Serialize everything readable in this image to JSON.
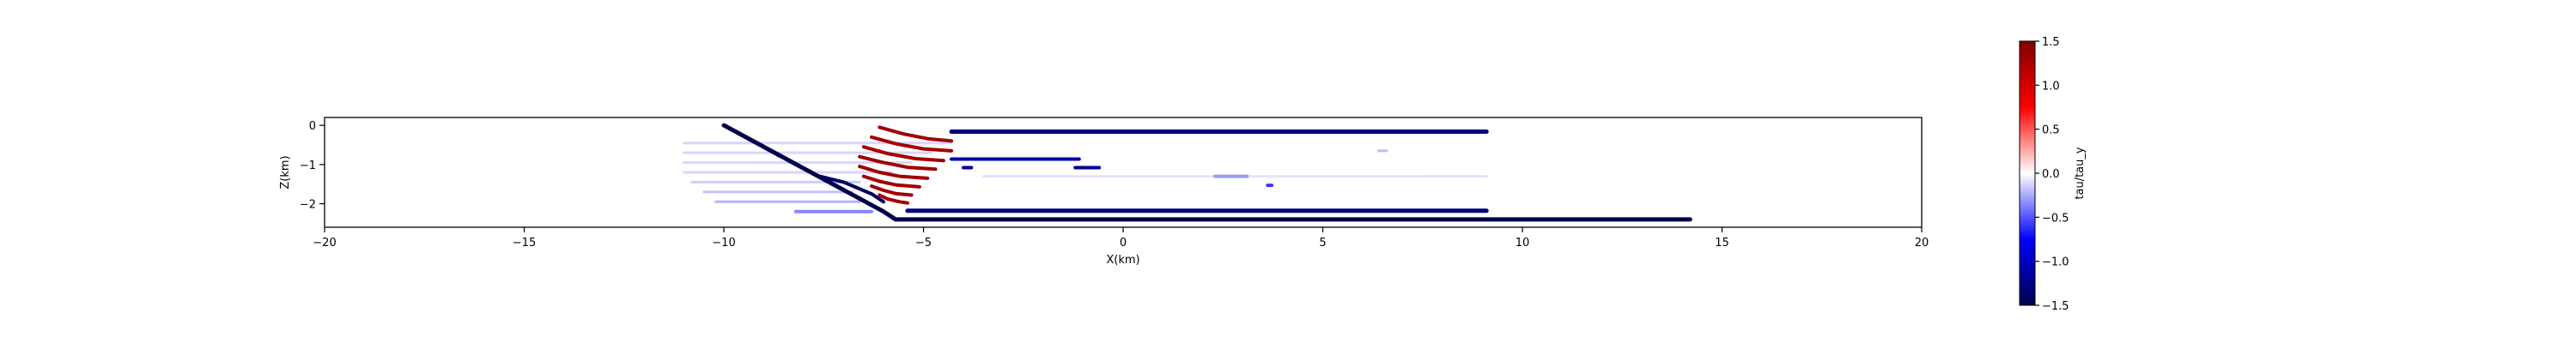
{
  "chart_data": {
    "type": "line",
    "title": "",
    "xlabel": "X(km)",
    "ylabel": "Z(km)",
    "xlim": [
      -20,
      20
    ],
    "ylim": [
      -2.6,
      0.2
    ],
    "xticks": [
      "−20",
      "−15",
      "−10",
      "−5",
      "0",
      "5",
      "10",
      "15",
      "20"
    ],
    "xtick_values": [
      -20,
      -15,
      -10,
      -5,
      0,
      5,
      10,
      15,
      20
    ],
    "yticks": [
      "0",
      "−1",
      "−2"
    ],
    "ytick_values": [
      0,
      -1,
      -2
    ],
    "grid": false,
    "colorbar": {
      "label": "tau/tau_y",
      "range": [
        -1.5,
        1.5
      ],
      "ticks": [
        "1.5",
        "1.0",
        "0.5",
        "0.0",
        "−0.5",
        "−1.0",
        "−1.5"
      ],
      "tick_values": [
        1.5,
        1.0,
        0.5,
        0.0,
        -0.5,
        -1.0,
        -1.5
      ],
      "colormap": "seismic"
    },
    "series": [
      {
        "value": -1.5,
        "width": 5,
        "x": [
          -10,
          -6,
          -5.7,
          4.3,
          14.2
        ],
        "y": [
          0,
          -2.2,
          -2.4,
          -2.4,
          -2.4
        ]
      },
      {
        "value": -1.4,
        "width": 4,
        "x": [
          -7.6,
          -7.0,
          -6.3,
          -6.0
        ],
        "y": [
          -1.3,
          -1.45,
          -1.75,
          -1.95
        ]
      },
      {
        "value": -1.3,
        "width": 5,
        "x": [
          -4.3,
          9.1
        ],
        "y": [
          -0.16,
          -0.16
        ]
      },
      {
        "value": -1.3,
        "width": 5,
        "x": [
          -5.4,
          9.1
        ],
        "y": [
          -2.18,
          -2.18
        ]
      },
      {
        "value": -1.1,
        "width": 4,
        "x": [
          -4.3,
          -1.1
        ],
        "y": [
          -0.86,
          -0.86
        ]
      },
      {
        "value": -1.2,
        "width": 4,
        "x": [
          -4.0,
          -3.8
        ],
        "y": [
          -1.08,
          -1.08
        ]
      },
      {
        "value": -1.2,
        "width": 4,
        "x": [
          -1.2,
          -0.6
        ],
        "y": [
          -1.08,
          -1.08
        ]
      },
      {
        "value": -0.3,
        "width": 4,
        "x": [
          2.3,
          3.1
        ],
        "y": [
          -1.3,
          -1.3
        ]
      },
      {
        "value": -0.6,
        "width": 4,
        "x": [
          3.62,
          3.72
        ],
        "y": [
          -1.53,
          -1.53
        ]
      },
      {
        "value": -0.2,
        "width": 3,
        "x": [
          6.4,
          6.6
        ],
        "y": [
          -0.65,
          -0.65
        ]
      },
      {
        "value": -0.12,
        "width": 3,
        "x": [
          -11,
          -4.3
        ],
        "y": [
          -0.45,
          -0.45
        ]
      },
      {
        "value": -0.12,
        "width": 3,
        "x": [
          -11,
          -4.8
        ],
        "y": [
          -0.7,
          -0.7
        ]
      },
      {
        "value": -0.12,
        "width": 3,
        "x": [
          -11,
          -5.3
        ],
        "y": [
          -0.95,
          -0.95
        ]
      },
      {
        "value": -0.12,
        "width": 3,
        "x": [
          -11,
          -5.8
        ],
        "y": [
          -1.2,
          -1.2
        ]
      },
      {
        "value": -0.15,
        "width": 3,
        "x": [
          -10.8,
          -6.6
        ],
        "y": [
          -1.45,
          -1.45
        ]
      },
      {
        "value": -0.18,
        "width": 3,
        "x": [
          -10.5,
          -6.8
        ],
        "y": [
          -1.7,
          -1.7
        ]
      },
      {
        "value": -0.22,
        "width": 3,
        "x": [
          -10.2,
          -6.6
        ],
        "y": [
          -1.95,
          -1.95
        ]
      },
      {
        "value": -0.35,
        "width": 4,
        "x": [
          -8.2,
          -6.3
        ],
        "y": [
          -2.2,
          -2.2
        ]
      },
      {
        "value": -0.08,
        "width": 3,
        "x": [
          -3.5,
          9.1
        ],
        "y": [
          -1.3,
          -1.3
        ]
      },
      {
        "value": 1.3,
        "width": 4,
        "x": [
          -6.1,
          -5.5,
          -4.9,
          -4.3
        ],
        "y": [
          -0.05,
          -0.22,
          -0.34,
          -0.4
        ]
      },
      {
        "value": 1.3,
        "width": 4,
        "x": [
          -6.3,
          -5.7,
          -5.0,
          -4.3
        ],
        "y": [
          -0.3,
          -0.47,
          -0.6,
          -0.65
        ]
      },
      {
        "value": 1.3,
        "width": 4,
        "x": [
          -6.5,
          -5.9,
          -5.2,
          -4.5
        ],
        "y": [
          -0.55,
          -0.72,
          -0.85,
          -0.9
        ]
      },
      {
        "value": 1.3,
        "width": 4,
        "x": [
          -6.6,
          -6.0,
          -5.4,
          -4.7
        ],
        "y": [
          -0.8,
          -0.95,
          -1.07,
          -1.12
        ]
      },
      {
        "value": 1.3,
        "width": 4,
        "x": [
          -6.6,
          -6.1,
          -5.6,
          -4.9
        ],
        "y": [
          -1.05,
          -1.2,
          -1.3,
          -1.35
        ]
      },
      {
        "value": 1.3,
        "width": 4,
        "x": [
          -6.5,
          -6.1,
          -5.7,
          -5.1
        ],
        "y": [
          -1.3,
          -1.43,
          -1.52,
          -1.57
        ]
      },
      {
        "value": 1.3,
        "width": 4,
        "x": [
          -6.3,
          -6.0,
          -5.7,
          -5.3
        ],
        "y": [
          -1.55,
          -1.66,
          -1.74,
          -1.78
        ]
      },
      {
        "value": 1.3,
        "width": 4,
        "x": [
          -6.1,
          -5.9,
          -5.6,
          -5.4
        ],
        "y": [
          -1.78,
          -1.88,
          -1.95,
          -1.98
        ]
      }
    ]
  }
}
